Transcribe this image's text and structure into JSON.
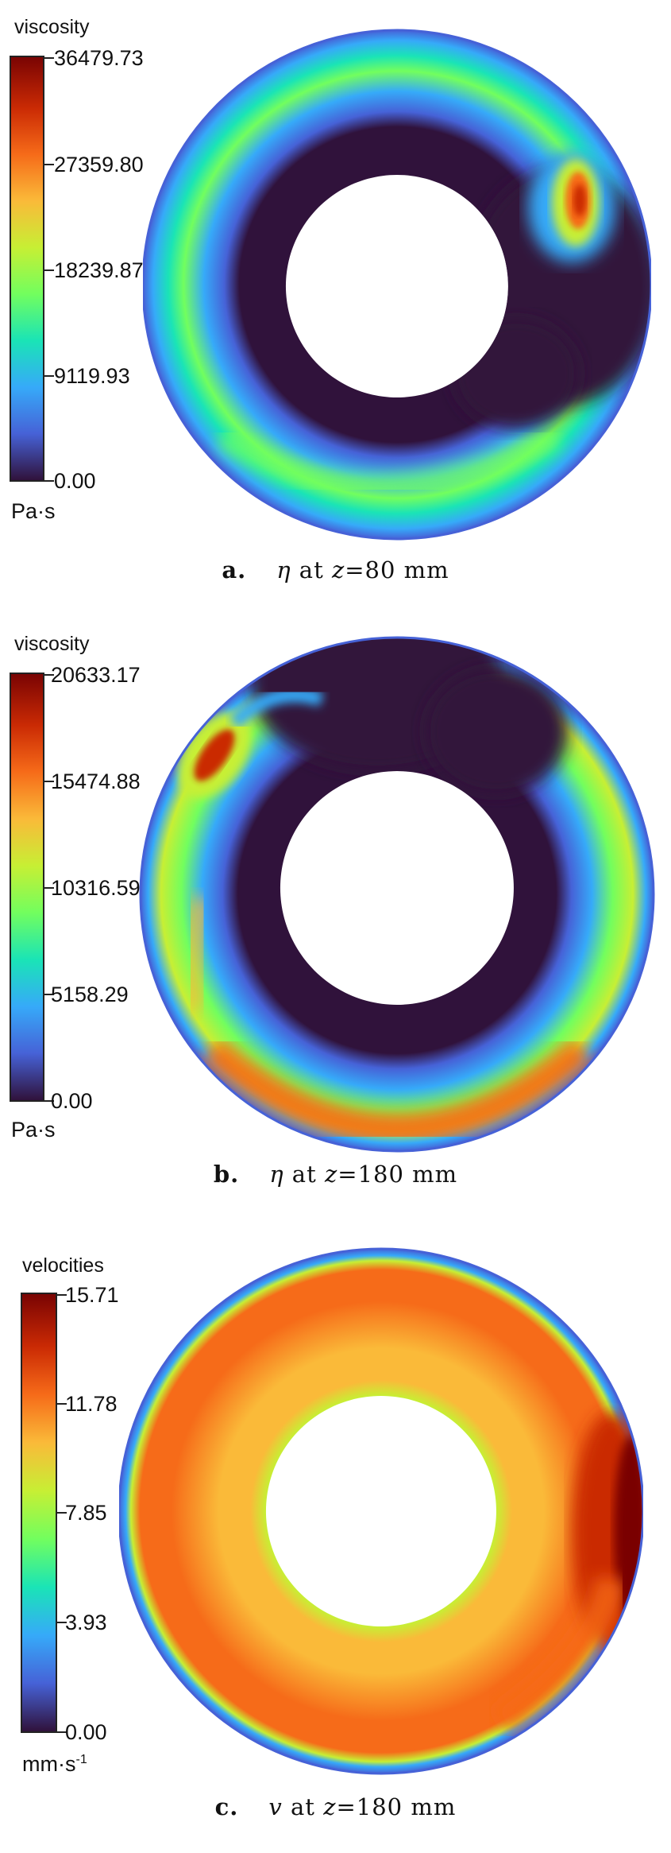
{
  "colormap": [
    "#30123b",
    "#4662d7",
    "#36aaf9",
    "#1ae4b6",
    "#72fe5e",
    "#c7ef34",
    "#faba39",
    "#f66b19",
    "#ca2a04",
    "#7a0403"
  ],
  "panels": [
    {
      "id": "a",
      "title": "viscosity",
      "unit": "Pa·s",
      "ticks": [
        "36479.73",
        "27359.80",
        "18239.87",
        "9119.93",
        "0.00"
      ],
      "caption_label": "a.",
      "caption_symbol": "η",
      "caption_text": " at ",
      "caption_var": "z",
      "caption_value": "=80 mm"
    },
    {
      "id": "b",
      "title": "viscosity",
      "unit": "Pa·s",
      "ticks": [
        "20633.17",
        "15474.88",
        "10316.59",
        "5158.29",
        "0.00"
      ],
      "caption_label": "b.",
      "caption_symbol": "η",
      "caption_text": " at ",
      "caption_var": "z",
      "caption_value": "=180 mm"
    },
    {
      "id": "c",
      "title": "velocities",
      "unit": "mm·s",
      "unit_exp": "-1",
      "ticks": [
        "15.71",
        "11.78",
        "7.85",
        "3.93",
        "0.00"
      ],
      "caption_label": "c.",
      "caption_symbol": "v",
      "caption_text": " at ",
      "caption_var": "z",
      "caption_value": "=180 mm"
    }
  ],
  "chart_data": [
    {
      "type": "heatmap",
      "title": "viscosity",
      "colorbar_range": [
        0.0,
        36479.73
      ],
      "colorbar_ticks": [
        36479.73,
        27359.8,
        18239.87,
        9119.93,
        0.0
      ],
      "unit": "Pa·s",
      "caption": "η at z=80 mm"
    },
    {
      "type": "heatmap",
      "title": "viscosity",
      "colorbar_range": [
        0.0,
        20633.17
      ],
      "colorbar_ticks": [
        20633.17,
        15474.88,
        10316.59,
        5158.29,
        0.0
      ],
      "unit": "Pa·s",
      "caption": "η at z=180 mm"
    },
    {
      "type": "heatmap",
      "title": "velocities",
      "colorbar_range": [
        0.0,
        15.71
      ],
      "colorbar_ticks": [
        15.71,
        11.78,
        7.85,
        3.93,
        0.0
      ],
      "unit": "mm·s-1",
      "caption": "v at z=180 mm"
    }
  ]
}
